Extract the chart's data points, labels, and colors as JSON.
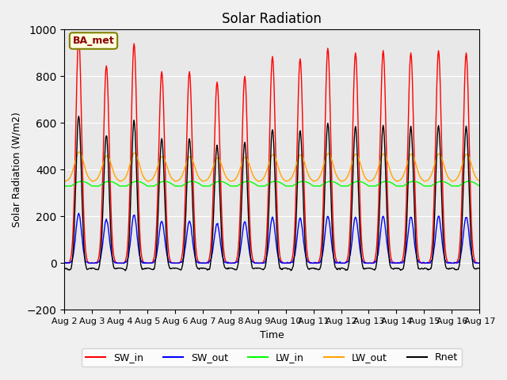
{
  "title": "Solar Radiation",
  "xlabel": "Time",
  "ylabel": "Solar Radiation (W/m2)",
  "ylim": [
    -200,
    1000
  ],
  "background_color": "#e8e8e8",
  "label_box_text": "BA_met",
  "legend_entries": [
    "SW_in",
    "SW_out",
    "LW_in",
    "LW_out",
    "Rnet"
  ],
  "line_colors": [
    "red",
    "blue",
    "lime",
    "orange",
    "black"
  ],
  "xtick_labels": [
    "Aug 2",
    "Aug 3",
    "Aug 4",
    "Aug 5",
    "Aug 6",
    "Aug 7",
    "Aug 8",
    "Aug 9",
    "Aug 10",
    "Aug 11",
    "Aug 12",
    "Aug 13",
    "Aug 14",
    "Aug 15",
    "Aug 16",
    "Aug 17"
  ],
  "n_days": 15,
  "start_day": 2,
  "hours_per_day": 24,
  "dt_hours": 0.5,
  "SW_in_peaks": [
    970,
    845,
    940,
    820,
    820,
    775,
    800,
    885,
    875,
    920,
    900,
    910,
    900,
    910,
    900
  ]
}
